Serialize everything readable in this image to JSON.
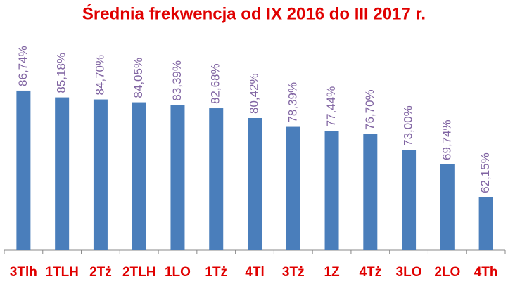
{
  "chart_data": {
    "type": "bar",
    "title": "Średnia frekwencja  od IX 2016 do III 2017 r.",
    "categories": [
      "3Tlh",
      "1TLH",
      "2Tż",
      "2TLH",
      "1LO",
      "1Tż",
      "4Tl",
      "3Tż",
      "1Z",
      "4Tż",
      "3LO",
      "2LO",
      "4Th"
    ],
    "values": [
      86.74,
      85.18,
      84.7,
      84.05,
      83.39,
      82.68,
      80.42,
      78.39,
      77.44,
      76.7,
      73.0,
      69.74,
      62.15
    ],
    "value_labels": [
      "86,74%",
      "85,18%",
      "84,70%",
      "84,05%",
      "83,39%",
      "82,68%",
      "80,42%",
      "78,39%",
      "77,44%",
      "76,70%",
      "73,00%",
      "69,74%",
      "62,15%"
    ],
    "color": "#4a7ebb",
    "label_color": "#8064a2",
    "category_color": "#e00000",
    "ylim": [
      50,
      100
    ]
  }
}
